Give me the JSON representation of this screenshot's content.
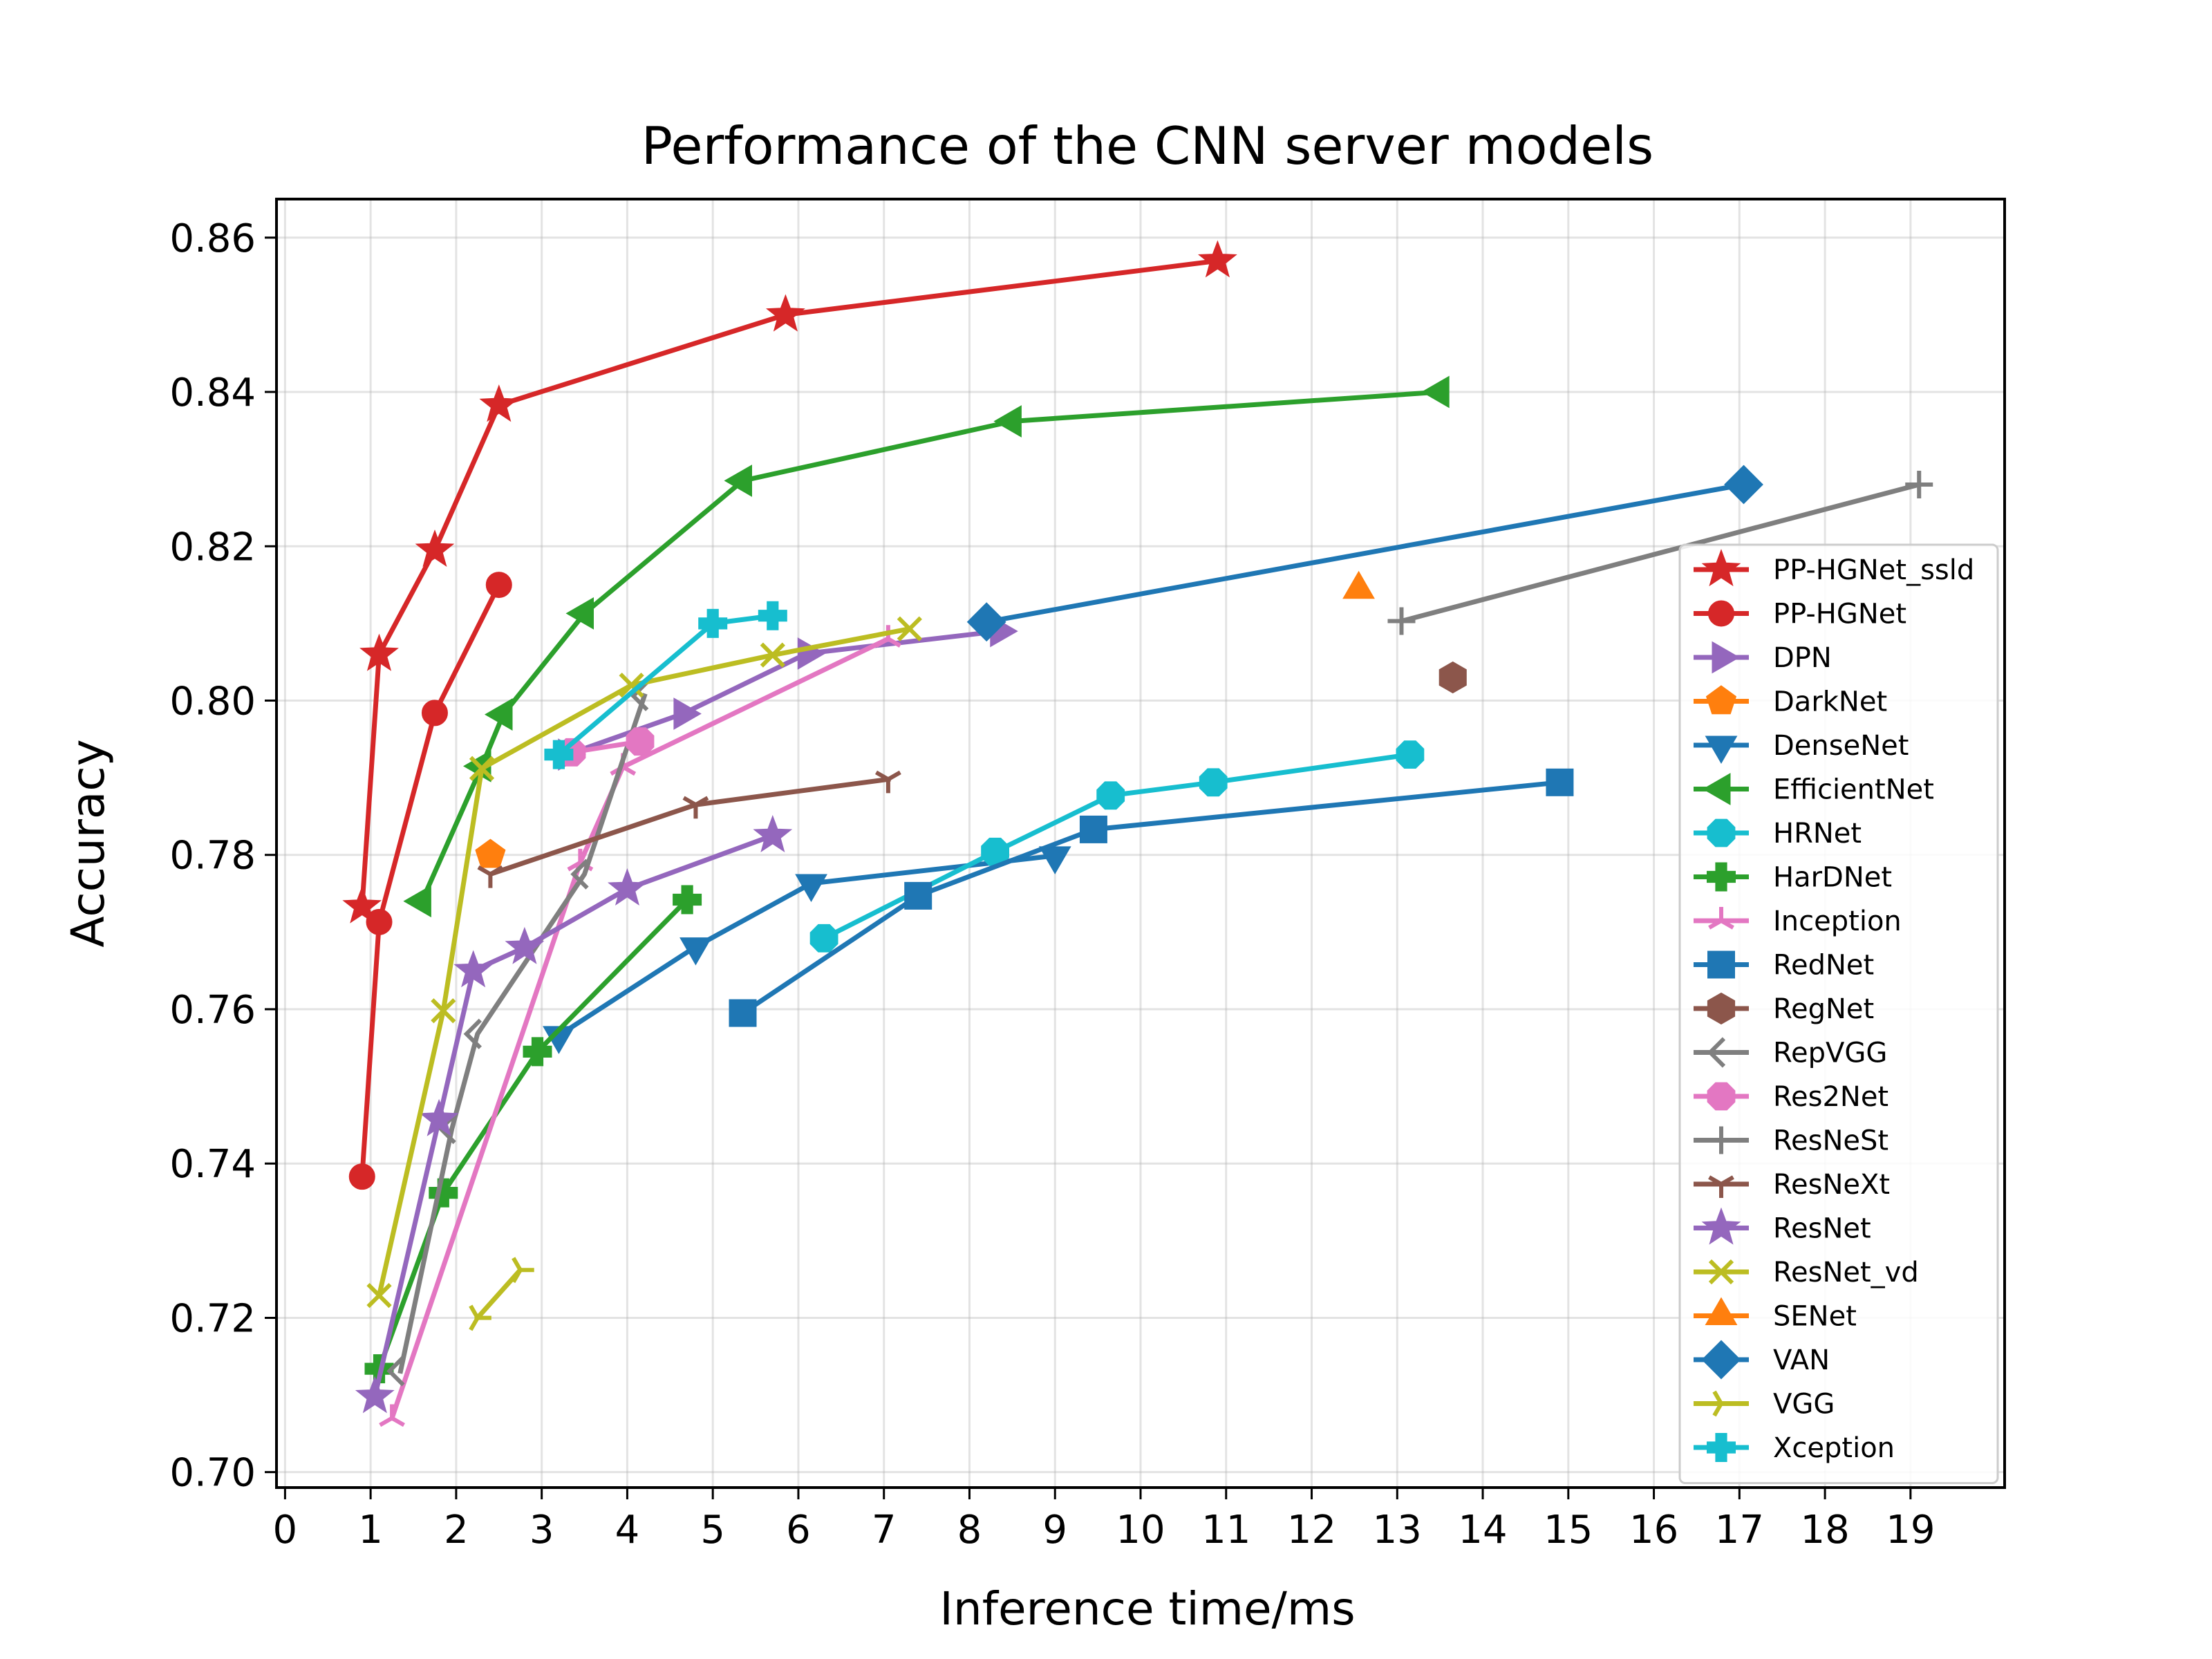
{
  "chart_data": {
    "type": "line",
    "title": "Performance of the CNN server models",
    "xlabel": "Inference time/ms",
    "ylabel": "Accuracy",
    "xlim": [
      -0.1,
      20.1
    ],
    "ylim": [
      0.698,
      0.865
    ],
    "xticks": [
      0,
      1,
      2,
      3,
      4,
      5,
      6,
      7,
      8,
      9,
      10,
      11,
      12,
      13,
      14,
      15,
      16,
      17,
      18,
      19
    ],
    "yticks": [
      0.7,
      0.72,
      0.74,
      0.76,
      0.78,
      0.8,
      0.82,
      0.84,
      0.86
    ],
    "ytick_labels": [
      "0.70",
      "0.72",
      "0.74",
      "0.76",
      "0.78",
      "0.80",
      "0.82",
      "0.84",
      "0.86"
    ],
    "grid": true,
    "legend_position": "right",
    "series": [
      {
        "name": "PP-HGNet_ssld",
        "color": "#d62728",
        "marker": "star",
        "x": [
          0.9,
          1.1,
          1.75,
          2.5,
          5.85,
          10.9
        ],
        "y": [
          0.7733,
          0.806,
          0.8195,
          0.8383,
          0.85,
          0.857
        ]
      },
      {
        "name": "PP-HGNet",
        "color": "#d62728",
        "marker": "circle",
        "x": [
          0.9,
          1.1,
          1.75,
          2.5
        ],
        "y": [
          0.7383,
          0.7713,
          0.7984,
          0.815
        ]
      },
      {
        "name": "DPN",
        "color": "#9467bd",
        "marker": "triangle-right",
        "x": [
          3.3,
          4.65,
          6.1,
          8.35
        ],
        "y": [
          0.793,
          0.7983,
          0.8061,
          0.809
        ]
      },
      {
        "name": "DarkNet",
        "color": "#ff7f0e",
        "marker": "pentagon",
        "x": [
          2.4
        ],
        "y": [
          0.78
        ]
      },
      {
        "name": "DenseNet",
        "color": "#1f77b4",
        "marker": "triangle-down",
        "x": [
          3.2,
          4.8,
          6.15,
          9.0
        ],
        "y": [
          0.7566,
          0.7681,
          0.7763,
          0.7799
        ]
      },
      {
        "name": "EfficientNet",
        "color": "#2ca02c",
        "marker": "triangle-left",
        "x": [
          1.6,
          2.3,
          2.55,
          3.5,
          5.35,
          8.5,
          13.5
        ],
        "y": [
          0.774,
          0.7915,
          0.7982,
          0.8113,
          0.8285,
          0.8362,
          0.84
        ]
      },
      {
        "name": "HRNet",
        "color": "#17becf",
        "marker": "octagon",
        "x": [
          6.3,
          8.3,
          9.65,
          10.85,
          13.15
        ],
        "y": [
          0.7692,
          0.7804,
          0.7877,
          0.7894,
          0.793
        ]
      },
      {
        "name": "HarDNet",
        "color": "#2ca02c",
        "marker": "plus-filled",
        "x": [
          1.1,
          1.85,
          2.95,
          4.7
        ],
        "y": [
          0.7134,
          0.7362,
          0.7545,
          0.7742
        ]
      },
      {
        "name": "Inception",
        "color": "#e377c2",
        "marker": "tri-up",
        "x": [
          1.25,
          3.45,
          3.95,
          7.05
        ],
        "y": [
          0.707,
          0.779,
          0.7914,
          0.808
        ]
      },
      {
        "name": "RedNet",
        "color": "#1f77b4",
        "marker": "square",
        "x": [
          5.35,
          7.4,
          9.45,
          14.9
        ],
        "y": [
          0.7595,
          0.7747,
          0.7833,
          0.7894
        ]
      },
      {
        "name": "RegNet",
        "color": "#8c564b",
        "marker": "hexagon",
        "x": [
          13.65
        ],
        "y": [
          0.803
        ]
      },
      {
        "name": "RepVGG",
        "color": "#7f7f7f",
        "marker": "tick-left",
        "x": [
          1.35,
          1.95,
          2.25,
          3.5,
          4.2
        ],
        "y": [
          0.7131,
          0.7445,
          0.7568,
          0.7775,
          0.8006
        ]
      },
      {
        "name": "Res2Net",
        "color": "#e377c2",
        "marker": "octagon",
        "x": [
          3.35,
          4.15
        ],
        "y": [
          0.7933,
          0.7947
        ]
      },
      {
        "name": "ResNeSt",
        "color": "#7f7f7f",
        "marker": "plus",
        "x": [
          13.05,
          19.1
        ],
        "y": [
          0.8103,
          0.828
        ]
      },
      {
        "name": "ResNeXt",
        "color": "#8c564b",
        "marker": "tri-down",
        "x": [
          2.4,
          4.8,
          7.05
        ],
        "y": [
          0.7775,
          0.7865,
          0.7898
        ]
      },
      {
        "name": "ResNet",
        "color": "#9467bd",
        "marker": "star",
        "x": [
          1.05,
          1.8,
          2.2,
          2.8,
          4.0,
          5.7
        ],
        "y": [
          0.7098,
          0.7457,
          0.765,
          0.768,
          0.7756,
          0.7825
        ]
      },
      {
        "name": "ResNet_vd",
        "color": "#bcbd22",
        "marker": "x",
        "x": [
          1.1,
          1.85,
          2.3,
          4.05,
          5.7,
          7.3
        ],
        "y": [
          0.7229,
          0.7598,
          0.7912,
          0.802,
          0.8059,
          0.8093
        ]
      },
      {
        "name": "SENet",
        "color": "#ff7f0e",
        "marker": "triangle-up",
        "x": [
          12.55
        ],
        "y": [
          0.8144
        ]
      },
      {
        "name": "VAN",
        "color": "#1f77b4",
        "marker": "diamond",
        "x": [
          8.2,
          17.05
        ],
        "y": [
          0.8102,
          0.828
        ]
      },
      {
        "name": "VGG",
        "color": "#bcbd22",
        "marker": "tri-right",
        "x": [
          2.25,
          2.75
        ],
        "y": [
          0.72,
          0.7262
        ]
      },
      {
        "name": "Xception",
        "color": "#17becf",
        "marker": "plus-filled",
        "x": [
          3.2,
          5.0,
          5.7
        ],
        "y": [
          0.793,
          0.81,
          0.811
        ]
      }
    ]
  }
}
